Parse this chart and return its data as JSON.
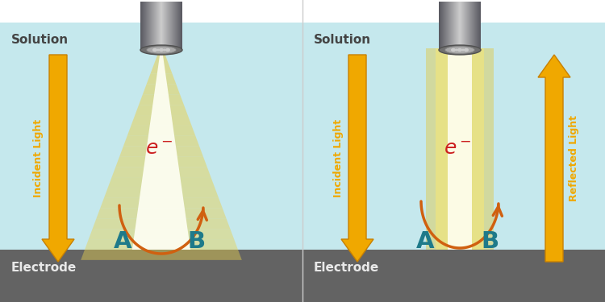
{
  "bg_solution": "#c5e8ed",
  "bg_electrode": "#636363",
  "bg_white": "#ffffff",
  "solution_label": "Solution",
  "electrode_label": "Electrode",
  "arrow_color": "#f0a800",
  "arrow_edge": "#c88000",
  "label_A_color": "#1e7a8a",
  "label_B_color": "#1e7a8a",
  "electron_color": "#cc2020",
  "curve_arrow_color": "#d06010",
  "incident_label": "Incident Light",
  "reflected_label": "Reflected Light",
  "lamp_body_color": "#909090",
  "lamp_highlight": "#cccccc",
  "lamp_dark": "#555555",
  "beam_mid": "#f0e070",
  "beam_bright": "#fffce8"
}
